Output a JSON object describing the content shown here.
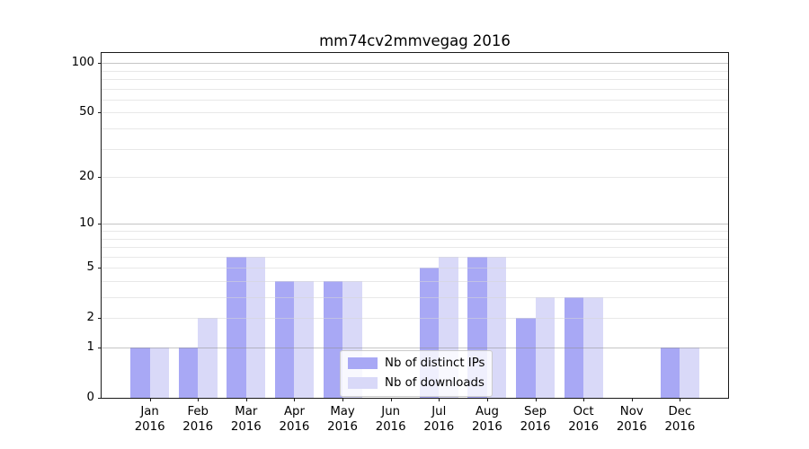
{
  "title": "mm74cv2mmvegag 2016",
  "colors": {
    "distinct_ips_bar": "#a8a8f5",
    "downloads_bar": "#d9d9f8",
    "grid_minor": "rgba(214,214,214,0.55)",
    "grid_major": "rgba(140,140,140,0.5)",
    "spine": "#1a1a1a",
    "text": "#000000",
    "legend_border": "#cccccc"
  },
  "legend": {
    "position": "lower center",
    "items": [
      {
        "label": "Nb of distinct IPs",
        "swatch": "distinct_ips_bar"
      },
      {
        "label": "Nb of downloads",
        "swatch": "downloads_bar"
      }
    ]
  },
  "chart_data": {
    "type": "bar",
    "title": "mm74cv2mmvegag 2016",
    "categories": [
      "Jan 2016",
      "Feb 2016",
      "Mar 2016",
      "Apr 2016",
      "May 2016",
      "Jun 2016",
      "Jul 2016",
      "Aug 2016",
      "Sep 2016",
      "Oct 2016",
      "Nov 2016",
      "Dec 2016"
    ],
    "series": [
      {
        "name": "Nb of distinct IPs",
        "color": "#a8a8f5",
        "values": [
          1,
          1,
          6,
          4,
          4,
          0,
          5,
          6,
          2,
          3,
          0,
          1
        ]
      },
      {
        "name": "Nb of downloads",
        "color": "#d9d9f8",
        "values": [
          1,
          2,
          6,
          4,
          4,
          0,
          6,
          6,
          3,
          3,
          0,
          1
        ]
      }
    ],
    "xlabel": "",
    "ylabel": "",
    "yscale": "log1p",
    "ylim": [
      0,
      115
    ],
    "yticks": [
      0,
      1,
      2,
      5,
      10,
      20,
      50,
      100
    ],
    "gridlines": {
      "minor": [
        2,
        3,
        4,
        5,
        6,
        7,
        8,
        9,
        20,
        30,
        40,
        50,
        60,
        70,
        80,
        90
      ],
      "major": [
        1,
        10,
        100
      ]
    },
    "grid": true,
    "legend_position": "lower center"
  }
}
